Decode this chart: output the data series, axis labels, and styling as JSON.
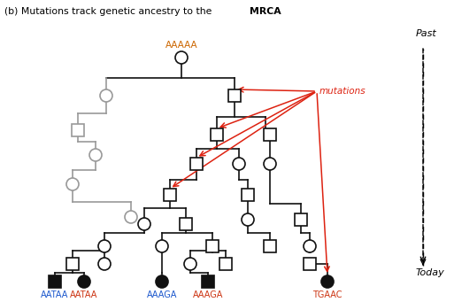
{
  "title_normal": "(b) Mutations track genetic ancestry to the ",
  "title_bold": "MRCA",
  "ancestor_label": "AAAAA",
  "leaf_labels": [
    "AATAA",
    "AATAA",
    "AAAGA",
    "AAAGA",
    "TGAAC"
  ],
  "leaf_colors": [
    "#1a56cc",
    "#cc3311",
    "#1a56cc",
    "#cc3311",
    "#cc3311"
  ],
  "mutations_label": "mutations",
  "past_label": "Past",
  "today_label": "Today",
  "bg_color": "#ffffff",
  "black": "#111111",
  "gray": "#999999",
  "red": "#dd2211",
  "orange": "#cc6600"
}
